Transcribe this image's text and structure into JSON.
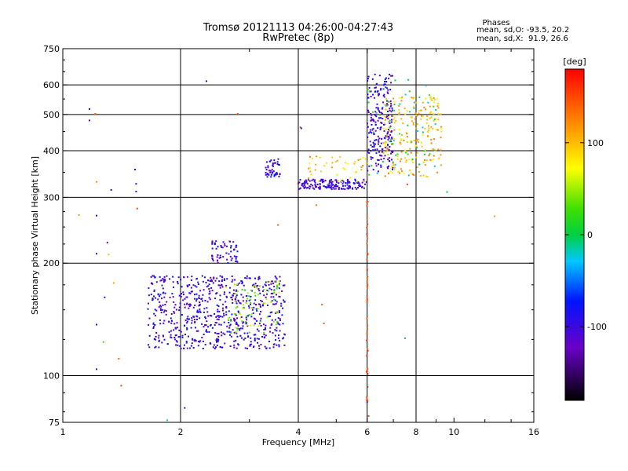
{
  "chart_data": {
    "type": "scatter",
    "title": "Tromsø 20121113 04:26:00-04:27:43",
    "subtitle": "RwPretec (8p)",
    "stats": {
      "header": "Phases",
      "line_o": "mean, sd,O: -93.5, 20.2",
      "line_x": "mean, sd,X:  91.9, 26.6"
    },
    "xlabel": "Frequency [MHz]",
    "ylabel": "Stationary phase Virtual Height [km]",
    "x_scale": "log",
    "y_scale": "log",
    "xlim": [
      1,
      16
    ],
    "ylim": [
      75,
      750
    ],
    "x_ticks": [
      1,
      2,
      4,
      6,
      8,
      10,
      16
    ],
    "x_tick_labels": [
      "1",
      "2",
      "4",
      "6",
      "8",
      "10",
      "16"
    ],
    "x_gridlines": [
      2,
      4,
      6,
      8
    ],
    "y_ticks": [
      75,
      100,
      200,
      300,
      400,
      500,
      600,
      750
    ],
    "y_tick_labels": [
      "75",
      "100",
      "200",
      "300",
      "400",
      "500",
      "600",
      "750"
    ],
    "y_gridlines": [
      100,
      200,
      300,
      400,
      500,
      600
    ],
    "grid": true,
    "colorbar": {
      "label": "deg",
      "range": [
        -180,
        180
      ],
      "ticks": [
        100,
        0,
        -100
      ],
      "tick_labels": [
        "100",
        "0",
        "-100"
      ]
    },
    "clusters": [
      {
        "name": "lower",
        "f_range": [
          1.65,
          3.7
        ],
        "h_range": [
          118,
          185
        ],
        "phase": -100,
        "count": 700
      },
      {
        "name": "lower-mixed",
        "f_range": [
          2.6,
          3.6
        ],
        "h_range": [
          130,
          180
        ],
        "phase": 40,
        "count": 80
      },
      {
        "name": "lower-upper-bump",
        "f_range": [
          2.4,
          2.8
        ],
        "h_range": [
          200,
          230
        ],
        "phase": -100,
        "count": 60
      },
      {
        "name": "patch",
        "f_range": [
          3.3,
          3.6
        ],
        "h_range": [
          340,
          380
        ],
        "phase": -100,
        "count": 45
      },
      {
        "name": "F-trace",
        "f_range": [
          4.0,
          6.0
        ],
        "h_range": [
          315,
          335
        ],
        "phase": -100,
        "count": 160
      },
      {
        "name": "F-trace-mixed",
        "f_range": [
          4.2,
          6.0
        ],
        "h_range": [
          330,
          390
        ],
        "phase": 100,
        "count": 45
      },
      {
        "name": "F-upper-low",
        "f_range": [
          6.0,
          7.0
        ],
        "h_range": [
          350,
          640
        ],
        "phase": -100,
        "count": 220
      },
      {
        "name": "F-upper-high",
        "f_range": [
          6.6,
          9.3
        ],
        "h_range": [
          340,
          560
        ],
        "phase": 100,
        "count": 210
      },
      {
        "name": "F-upper-mixed",
        "f_range": [
          6.0,
          9.0
        ],
        "h_range": [
          340,
          620
        ],
        "phase": 0,
        "count": 60
      }
    ],
    "sparse_points": [
      {
        "f": 1.17,
        "h": 517,
        "p": -100
      },
      {
        "f": 1.17,
        "h": 482,
        "p": -100
      },
      {
        "f": 1.21,
        "h": 502,
        "p": 140
      },
      {
        "f": 1.22,
        "h": 330,
        "p": 120
      },
      {
        "f": 1.22,
        "h": 268,
        "p": -100
      },
      {
        "f": 1.22,
        "h": 212,
        "p": -100
      },
      {
        "f": 1.22,
        "h": 137,
        "p": -100
      },
      {
        "f": 1.22,
        "h": 104,
        "p": -100
      },
      {
        "f": 1.28,
        "h": 162,
        "p": -100
      },
      {
        "f": 1.3,
        "h": 227,
        "p": -120
      },
      {
        "f": 1.31,
        "h": 211,
        "p": 100
      },
      {
        "f": 1.33,
        "h": 314,
        "p": -100
      },
      {
        "f": 1.35,
        "h": 177,
        "p": 110
      },
      {
        "f": 1.39,
        "h": 111,
        "p": 140
      },
      {
        "f": 1.41,
        "h": 94,
        "p": 150
      },
      {
        "f": 1.53,
        "h": 356,
        "p": -100
      },
      {
        "f": 1.54,
        "h": 326,
        "p": -100
      },
      {
        "f": 1.54,
        "h": 311,
        "p": -100
      },
      {
        "f": 1.55,
        "h": 280,
        "p": 150
      },
      {
        "f": 1.1,
        "h": 269,
        "p": 110
      },
      {
        "f": 1.27,
        "h": 123,
        "p": 30
      },
      {
        "f": 2.33,
        "h": 614,
        "p": -80
      },
      {
        "f": 2.8,
        "h": 502,
        "p": 150
      },
      {
        "f": 4.05,
        "h": 462,
        "p": 150
      },
      {
        "f": 4.07,
        "h": 459,
        "p": -100
      },
      {
        "f": 2.05,
        "h": 82,
        "p": -100
      },
      {
        "f": 1.85,
        "h": 76,
        "p": -20
      },
      {
        "f": 6.0,
        "h": 94,
        "p": 0
      },
      {
        "f": 6.0,
        "h": 85,
        "p": -120
      },
      {
        "f": 6.05,
        "h": 78,
        "p": 150
      },
      {
        "f": 9.6,
        "h": 310,
        "p": 0
      },
      {
        "f": 12.7,
        "h": 267,
        "p": 110
      },
      {
        "f": 4.6,
        "h": 155,
        "p": 140
      },
      {
        "f": 4.65,
        "h": 138,
        "p": 140
      },
      {
        "f": 3.55,
        "h": 253,
        "p": 140
      },
      {
        "f": 4.45,
        "h": 286,
        "p": 130
      },
      {
        "f": 7.5,
        "h": 126,
        "p": 0
      },
      {
        "f": 7.6,
        "h": 325,
        "p": 150
      }
    ],
    "vertical_stripe": {
      "f": 6.0,
      "h_range": [
        85,
        300
      ],
      "phase": 150,
      "count": 40
    }
  }
}
